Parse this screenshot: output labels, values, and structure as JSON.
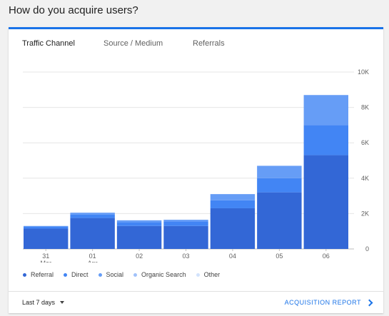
{
  "heading": "How do you acquire users?",
  "tabs": [
    {
      "label": "Traffic Channel",
      "active": true
    },
    {
      "label": "Source / Medium",
      "active": false
    },
    {
      "label": "Referrals",
      "active": false
    }
  ],
  "footer": {
    "date_range": "Last 7 days",
    "report_link": "ACQUISITION REPORT"
  },
  "colors": {
    "accent": "#1a73e8",
    "series": [
      "#3367d6",
      "#4285f4",
      "#669df6",
      "#a1c2fa",
      "#d2e3fc"
    ]
  },
  "chart_data": {
    "type": "bar",
    "stacked": true,
    "categories": [
      {
        "day": "31",
        "month": "Mar"
      },
      {
        "day": "01",
        "month": "Apr"
      },
      {
        "day": "02",
        "month": ""
      },
      {
        "day": "03",
        "month": ""
      },
      {
        "day": "04",
        "month": ""
      },
      {
        "day": "05",
        "month": ""
      },
      {
        "day": "06",
        "month": ""
      }
    ],
    "series": [
      {
        "name": "Referral",
        "values": [
          1150,
          1750,
          1300,
          1300,
          2300,
          3200,
          5300
        ]
      },
      {
        "name": "Direct",
        "values": [
          100,
          200,
          220,
          250,
          450,
          800,
          1700
        ]
      },
      {
        "name": "Social",
        "values": [
          50,
          100,
          100,
          100,
          350,
          700,
          1700
        ]
      },
      {
        "name": "Organic Search",
        "values": [
          0,
          0,
          0,
          0,
          0,
          0,
          0
        ]
      },
      {
        "name": "Other",
        "values": [
          0,
          0,
          0,
          0,
          0,
          0,
          0
        ]
      }
    ],
    "yticks": [
      "0",
      "2K",
      "4K",
      "6K",
      "8K",
      "10K"
    ],
    "ylim": [
      0,
      10000
    ],
    "grid": true,
    "legend": "bottom"
  }
}
